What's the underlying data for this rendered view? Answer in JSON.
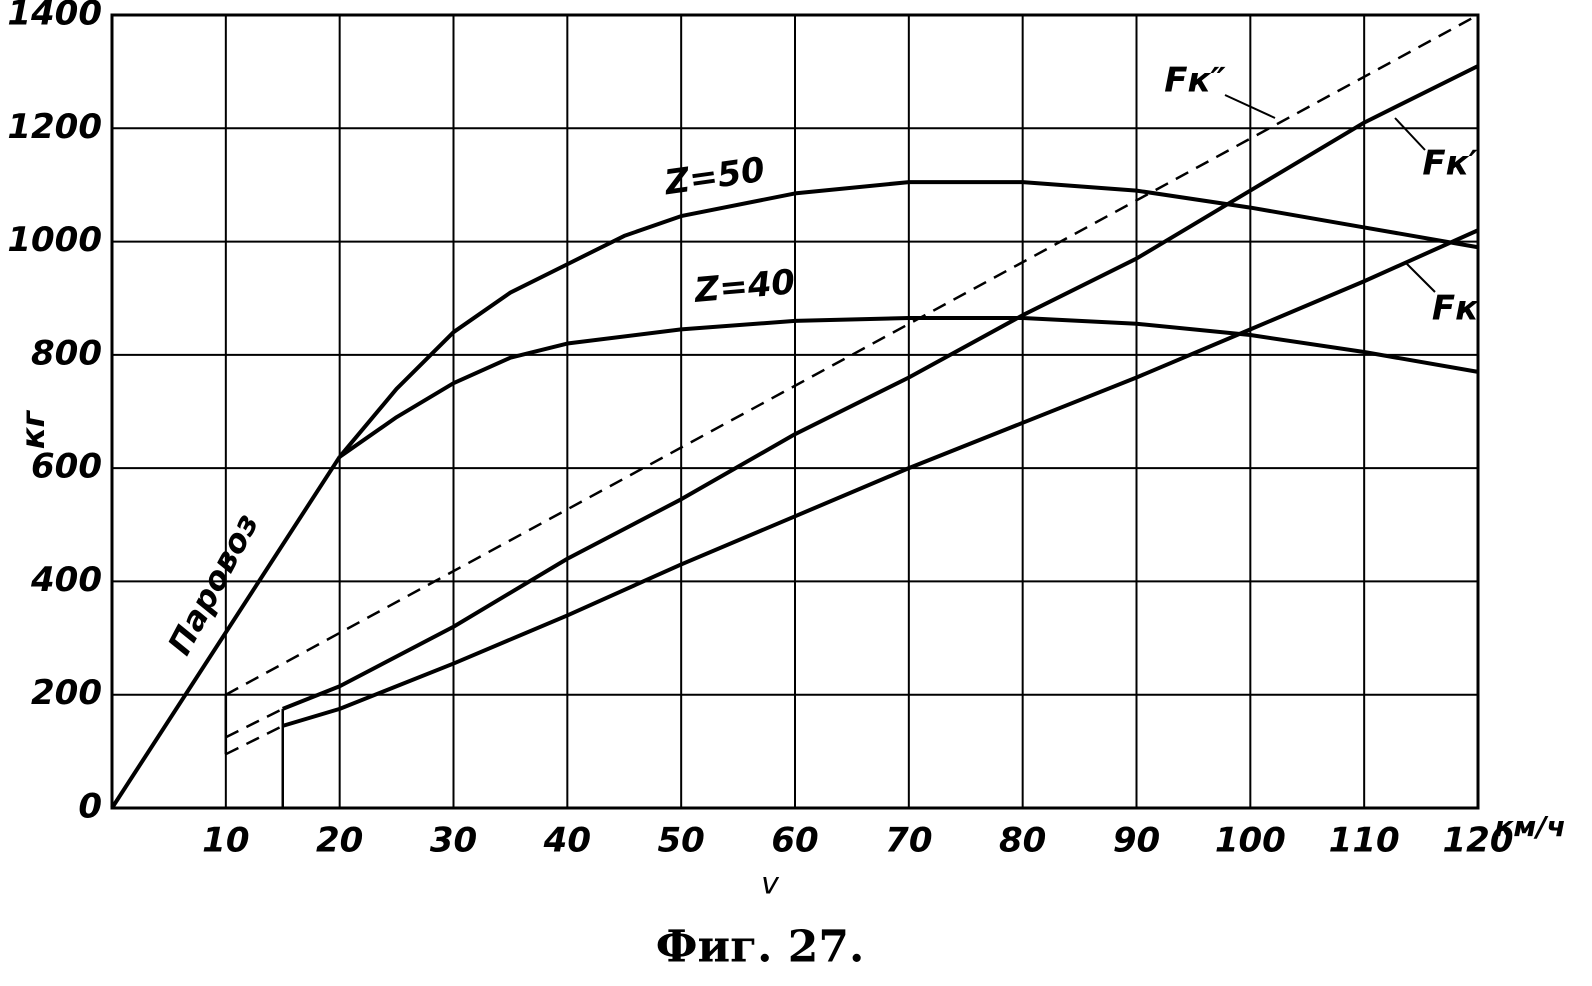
{
  "chart_data": {
    "type": "line",
    "caption": "Фиг. 27.",
    "x_label": "v",
    "x_unit": "км/ч",
    "y_label": "кг",
    "xlim": [
      0,
      120
    ],
    "ylim": [
      0,
      1400
    ],
    "xticks": [
      10,
      20,
      30,
      40,
      50,
      60,
      70,
      80,
      90,
      100,
      110,
      120
    ],
    "yticks": [
      0,
      200,
      400,
      600,
      800,
      1000,
      1200,
      1400
    ],
    "grid": true,
    "series": [
      {
        "name": "Паровоз",
        "color": "#000000",
        "dash": false,
        "x": [
          0,
          20
        ],
        "values": [
          0,
          620
        ]
      },
      {
        "name": "Z=50",
        "color": "#000000",
        "dash": false,
        "x": [
          20,
          25,
          30,
          35,
          40,
          45,
          50,
          60,
          70,
          80,
          90,
          100,
          110,
          120
        ],
        "values": [
          620,
          740,
          840,
          910,
          960,
          1010,
          1045,
          1085,
          1105,
          1105,
          1090,
          1060,
          1025,
          990
        ]
      },
      {
        "name": "Z=40",
        "color": "#000000",
        "dash": false,
        "x": [
          20,
          25,
          30,
          35,
          40,
          50,
          60,
          70,
          80,
          90,
          100,
          110,
          120
        ],
        "values": [
          620,
          690,
          750,
          795,
          820,
          845,
          860,
          865,
          865,
          855,
          835,
          805,
          770
        ]
      },
      {
        "name": "Fк″",
        "color": "#000000",
        "dash": true,
        "x": [
          10,
          120
        ],
        "values": [
          200,
          1400
        ]
      },
      {
        "name": "Fк′",
        "color": "#000000",
        "dash": false,
        "x": [
          15,
          20,
          30,
          40,
          50,
          60,
          70,
          80,
          90,
          100,
          110,
          120
        ],
        "values": [
          175,
          215,
          320,
          440,
          545,
          660,
          760,
          870,
          970,
          1090,
          1210,
          1310
        ]
      },
      {
        "name": "Fк",
        "color": "#000000",
        "dash": false,
        "x": [
          15,
          20,
          30,
          40,
          50,
          60,
          70,
          80,
          90,
          100,
          110,
          120
        ],
        "values": [
          145,
          175,
          255,
          340,
          430,
          515,
          600,
          680,
          760,
          845,
          930,
          1020
        ]
      },
      {
        "color": "#000000",
        "dash": true,
        "x": [
          10,
          15
        ],
        "values": [
          125,
          175
        ]
      },
      {
        "color": "#000000",
        "dash": true,
        "x": [
          10,
          15
        ],
        "values": [
          95,
          145
        ]
      }
    ]
  }
}
